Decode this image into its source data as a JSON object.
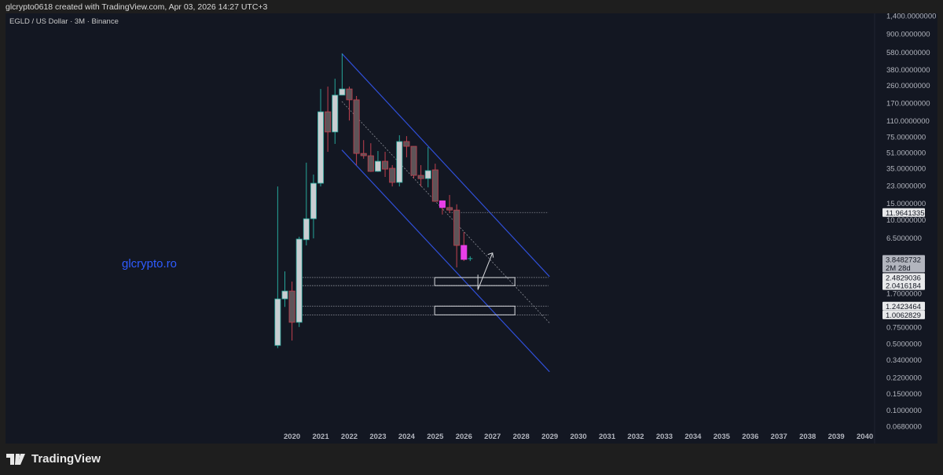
{
  "header": {
    "credit": "glcrypto0618 created with TradingView.com, Apr 03, 2026 14:27 UTC+3"
  },
  "chart_title": "EGLD / US Dollar · 3M · Binance",
  "watermark": "glcrypto.ro",
  "footer": {
    "brand": "TradingView",
    "logo_icon": "tradingview-logo-icon"
  },
  "colors": {
    "up_wick": "#26a69a",
    "up_body": "#c9cdd1",
    "down_wick": "#c2414f",
    "down_body": "#5e5458",
    "highlight": "#e83ee8",
    "channel": "#2f4fd8",
    "background": "#131722"
  },
  "chart_data": {
    "type": "candlestick",
    "scale": "log",
    "ylim": [
      0.068,
      1400
    ],
    "grid": false,
    "x_ticks": [
      "2020",
      "2021",
      "2022",
      "2023",
      "2024",
      "2025",
      "2026",
      "2027",
      "2028",
      "2029",
      "2030",
      "2031",
      "2032",
      "2033",
      "2034",
      "2035",
      "2036",
      "2037",
      "2038",
      "2039",
      "2040"
    ],
    "y_ticks": [
      "1,400.0000000",
      "900.0000000",
      "580.0000000",
      "380.0000000",
      "260.0000000",
      "170.0000000",
      "110.0000000",
      "75.0000000",
      "51.0000000",
      "35.0000000",
      "23.0000000",
      "15.0000000",
      "10.0000000",
      "6.5000000",
      "1.7000000",
      "0.7500000",
      "0.5000000",
      "0.3400000",
      "0.2200000",
      "0.1500000",
      "0.1000000",
      "0.0680000"
    ],
    "candles": [
      {
        "t": "2019-Q3",
        "o": 0.48,
        "h": 22.5,
        "l": 0.45,
        "c": 1.48
      },
      {
        "t": "2019-Q4",
        "o": 1.48,
        "h": 2.88,
        "l": 1.22,
        "c": 1.79
      },
      {
        "t": "2020-Q1",
        "o": 1.79,
        "h": 2.25,
        "l": 0.54,
        "c": 0.84
      },
      {
        "t": "2020-Q2",
        "o": 0.84,
        "h": 6.67,
        "l": 0.75,
        "c": 6.3
      },
      {
        "t": "2020-Q3",
        "o": 6.2,
        "h": 40,
        "l": 5.4,
        "c": 10.3
      },
      {
        "t": "2020-Q4",
        "o": 10.3,
        "h": 30,
        "l": 6.4,
        "c": 24.3
      },
      {
        "t": "2021-Q1",
        "o": 24.3,
        "h": 238,
        "l": 22.5,
        "c": 137
      },
      {
        "t": "2021-Q2",
        "o": 137,
        "h": 252,
        "l": 52,
        "c": 84
      },
      {
        "t": "2021-Q3",
        "o": 84,
        "h": 305,
        "l": 63,
        "c": 205
      },
      {
        "t": "2021-Q4",
        "o": 205,
        "h": 561,
        "l": 205,
        "c": 238
      },
      {
        "t": "2022-Q1",
        "o": 238,
        "h": 252,
        "l": 111,
        "c": 183
      },
      {
        "t": "2022-Q2",
        "o": 183,
        "h": 201,
        "l": 37.7,
        "c": 50
      },
      {
        "t": "2022-Q3",
        "o": 50,
        "h": 69,
        "l": 44,
        "c": 47.3
      },
      {
        "t": "2022-Q4",
        "o": 47.3,
        "h": 64,
        "l": 32,
        "c": 32.4
      },
      {
        "t": "2023-Q1",
        "o": 32.4,
        "h": 53,
        "l": 32,
        "c": 41.4
      },
      {
        "t": "2023-Q2",
        "o": 41.4,
        "h": 52,
        "l": 28.3,
        "c": 34.2
      },
      {
        "t": "2023-Q3",
        "o": 34.9,
        "h": 37.7,
        "l": 22.5,
        "c": 24.8
      },
      {
        "t": "2023-Q4",
        "o": 24.8,
        "h": 77.6,
        "l": 22.5,
        "c": 66.7
      },
      {
        "t": "2024-Q1",
        "o": 66.7,
        "h": 76,
        "l": 45.5,
        "c": 59.4
      },
      {
        "t": "2024-Q2",
        "o": 59.4,
        "h": 59.4,
        "l": 27.2,
        "c": 29.4
      },
      {
        "t": "2024-Q3",
        "o": 29.4,
        "h": 37.7,
        "l": 22.5,
        "c": 27.2
      },
      {
        "t": "2024-Q4",
        "o": 27.2,
        "h": 58.3,
        "l": 22,
        "c": 33
      },
      {
        "t": "2025-Q1",
        "o": 33.6,
        "h": 39,
        "l": 15.5,
        "c": 15.7
      },
      {
        "t": "2025-Q2",
        "o": 15.9,
        "h": 15.9,
        "l": 11.4,
        "c": 13.5,
        "highlight": true
      },
      {
        "t": "2025-Q3",
        "o": 13.5,
        "h": 18.3,
        "l": 11.8,
        "c": 12.7
      },
      {
        "t": "2025-Q4",
        "o": 12.7,
        "h": 14.6,
        "l": 3.17,
        "c": 5.4
      },
      {
        "t": "2026-Q1",
        "o": 5.4,
        "h": 7.47,
        "l": 3.7,
        "c": 3.8482732,
        "highlight": true
      }
    ],
    "price_tags": [
      {
        "value": "11.9641335",
        "price": 11.9641335,
        "style": "light"
      },
      {
        "value": "3.8482732",
        "sub": "2M 28d",
        "price": 3.8482732,
        "style": "current"
      },
      {
        "value": "2.4829036",
        "price": 2.4829036,
        "style": "light"
      },
      {
        "value": "2.0416184",
        "price": 2.0416184,
        "style": "light"
      },
      {
        "value": "1.2423464",
        "price": 1.2423464,
        "style": "light"
      },
      {
        "value": "1.0062829",
        "price": 1.0062829,
        "style": "light"
      }
    ],
    "drawings": {
      "channel_upper": [
        [
          2021.74,
          561
        ],
        [
          2028.99,
          2.54
        ]
      ],
      "channel_lower": [
        [
          2021.74,
          54.4
        ],
        [
          2028.99,
          0.254
        ]
      ],
      "channel_mid": [
        [
          2021.74,
          176
        ],
        [
          2028.99,
          0.826
        ]
      ],
      "hline_resistance": {
        "price": 11.9641335,
        "from": 2025.49,
        "to": 2028.95
      },
      "zone_lines": [
        {
          "price": 2.4829036,
          "from": 2020.37,
          "to": 2028.95
        },
        {
          "price": 2.0416184,
          "from": 2020.37,
          "to": 2028.95
        },
        {
          "price": 1.2423464,
          "from": 2020.37,
          "to": 2028.95
        },
        {
          "price": 1.0062829,
          "from": 2020.37,
          "to": 2028.95
        }
      ],
      "zones": [
        {
          "top": 2.4829036,
          "bottom": 2.0416184,
          "from": 2024.98,
          "to": 2027.78
        },
        {
          "top": 1.2423464,
          "bottom": 1.0062829,
          "from": 2024.98,
          "to": 2027.78
        }
      ],
      "projection_arrow": [
        [
          2026.49,
          2.66
        ],
        [
          2026.49,
          1.85
        ],
        [
          2027.0,
          4.5
        ]
      ]
    }
  }
}
